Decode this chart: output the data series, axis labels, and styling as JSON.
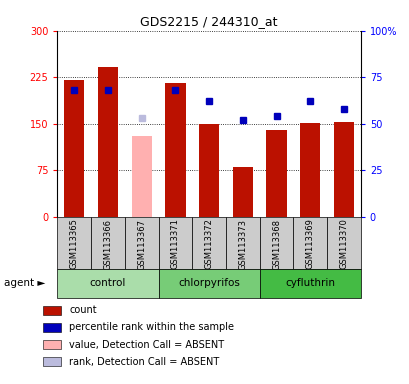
{
  "title": "GDS2215 / 244310_at",
  "samples": [
    "GSM113365",
    "GSM113366",
    "GSM113367",
    "GSM113371",
    "GSM113372",
    "GSM113373",
    "GSM113368",
    "GSM113369",
    "GSM113370"
  ],
  "bar_values": [
    220,
    242,
    130,
    215,
    150,
    80,
    140,
    152,
    153
  ],
  "bar_absent": [
    false,
    false,
    true,
    false,
    false,
    false,
    false,
    false,
    false
  ],
  "rank_values": [
    68,
    68,
    53,
    68,
    62,
    52,
    54,
    62,
    58
  ],
  "rank_absent": [
    false,
    false,
    true,
    false,
    false,
    false,
    false,
    false,
    false
  ],
  "ylim_left": [
    0,
    300
  ],
  "ylim_right": [
    0,
    100
  ],
  "yticks_left": [
    0,
    75,
    150,
    225,
    300
  ],
  "yticks_right": [
    0,
    25,
    50,
    75,
    100
  ],
  "bar_color_present": "#BB1100",
  "bar_color_absent": "#FFB0B0",
  "dot_color_present": "#0000BB",
  "dot_color_absent": "#BBBBDD",
  "sample_box_color": "#CCCCCC",
  "groups_info": [
    {
      "name": "control",
      "start": 0,
      "end": 3,
      "color": "#AADDAA"
    },
    {
      "name": "chlorpyrifos",
      "start": 3,
      "end": 6,
      "color": "#77CC77"
    },
    {
      "name": "cyfluthrin",
      "start": 6,
      "end": 9,
      "color": "#44BB44"
    }
  ],
  "agent_label": "agent ►",
  "legend_items": [
    {
      "label": "count",
      "color": "#BB1100"
    },
    {
      "label": "percentile rank within the sample",
      "color": "#0000BB"
    },
    {
      "label": "value, Detection Call = ABSENT",
      "color": "#FFB0B0"
    },
    {
      "label": "rank, Detection Call = ABSENT",
      "color": "#BBBBDD"
    }
  ],
  "title_fontsize": 9,
  "tick_fontsize": 7,
  "sample_fontsize": 6,
  "group_fontsize": 7.5,
  "legend_fontsize": 7,
  "bar_width": 0.6
}
